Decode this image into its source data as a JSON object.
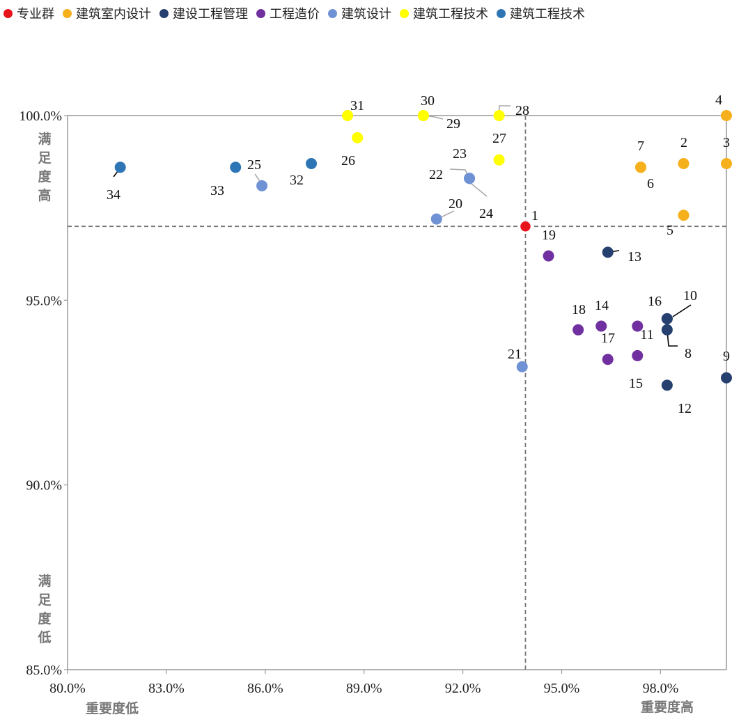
{
  "chart_data": {
    "type": "scatter",
    "title": "",
    "xlabel": "",
    "ylabel": "",
    "xlim": [
      80,
      100
    ],
    "ylim": [
      85,
      100
    ],
    "x_ticks": [
      "80.0%",
      "83.0%",
      "86.0%",
      "89.0%",
      "92.0%",
      "95.0%",
      "98.0%"
    ],
    "y_ticks": [
      "100.0%",
      "95.0%",
      "90.0%",
      "85.0%"
    ],
    "legend_position": "top",
    "reference_lines": {
      "x": 93.9,
      "y": 97.0
    },
    "quadrant_labels": {
      "y_high": [
        "满",
        "足",
        "度",
        "高"
      ],
      "y_low": [
        "满",
        "足",
        "度",
        "低"
      ],
      "x_low": "重要度低",
      "x_high": "重要度高"
    },
    "series": [
      {
        "name": "专业群",
        "color": "#e8141b",
        "points": [
          {
            "id": "1",
            "x": 93.9,
            "y": 97.0
          }
        ]
      },
      {
        "name": "建筑室内设计",
        "color": "#f5b01c",
        "points": [
          {
            "id": "2",
            "x": 98.7,
            "y": 98.7
          },
          {
            "id": "3",
            "x": 100.0,
            "y": 98.7
          },
          {
            "id": "4",
            "x": 100.0,
            "y": 100.0
          },
          {
            "id": "5",
            "x": 98.7,
            "y": 97.3
          },
          {
            "id": "6",
            "x": 97.4,
            "y": 98.6
          },
          {
            "id": "7",
            "x": 97.4,
            "y": 98.6
          }
        ]
      },
      {
        "name": "建设工程管理",
        "color": "#253f6e",
        "points": [
          {
            "id": "8",
            "x": 98.2,
            "y": 94.2
          },
          {
            "id": "9",
            "x": 100.0,
            "y": 92.9
          },
          {
            "id": "10",
            "x": 98.2,
            "y": 94.5
          },
          {
            "id": "12",
            "x": 98.2,
            "y": 92.7
          },
          {
            "id": "13",
            "x": 96.4,
            "y": 96.3
          },
          {
            "id": "16",
            "x": 98.2,
            "y": 94.5
          }
        ]
      },
      {
        "name": "工程造价",
        "color": "#7030a0",
        "points": [
          {
            "id": "11",
            "x": 97.3,
            "y": 94.3
          },
          {
            "id": "14",
            "x": 96.2,
            "y": 94.3
          },
          {
            "id": "15",
            "x": 97.3,
            "y": 93.5
          },
          {
            "id": "17",
            "x": 96.4,
            "y": 93.4
          },
          {
            "id": "18",
            "x": 95.5,
            "y": 94.2
          },
          {
            "id": "19",
            "x": 94.6,
            "y": 96.2
          }
        ]
      },
      {
        "name": "建筑设计",
        "color": "#6f92d5",
        "points": [
          {
            "id": "20",
            "x": 91.2,
            "y": 97.2
          },
          {
            "id": "21",
            "x": 93.8,
            "y": 93.2
          },
          {
            "id": "22",
            "x": 92.2,
            "y": 98.3
          },
          {
            "id": "23",
            "x": 92.2,
            "y": 98.3
          },
          {
            "id": "24",
            "x": 92.2,
            "y": 98.3
          },
          {
            "id": "25",
            "x": 85.9,
            "y": 98.1
          }
        ]
      },
      {
        "name": "建筑工程技术",
        "color": "#ffff00",
        "points": [
          {
            "id": "26",
            "x": 88.8,
            "y": 99.4
          },
          {
            "id": "27",
            "x": 93.1,
            "y": 98.8
          },
          {
            "id": "28",
            "x": 93.1,
            "y": 100.0
          },
          {
            "id": "29",
            "x": 90.8,
            "y": 100.0
          },
          {
            "id": "30",
            "x": 90.8,
            "y": 100.0
          },
          {
            "id": "31",
            "x": 88.5,
            "y": 100.0
          }
        ]
      },
      {
        "name": "建筑工程技术",
        "color": "#2e75b6",
        "points": [
          {
            "id": "32",
            "x": 87.4,
            "y": 98.7
          },
          {
            "id": "33",
            "x": 85.1,
            "y": 98.6
          },
          {
            "id": "34",
            "x": 81.6,
            "y": 98.6
          }
        ]
      }
    ]
  }
}
